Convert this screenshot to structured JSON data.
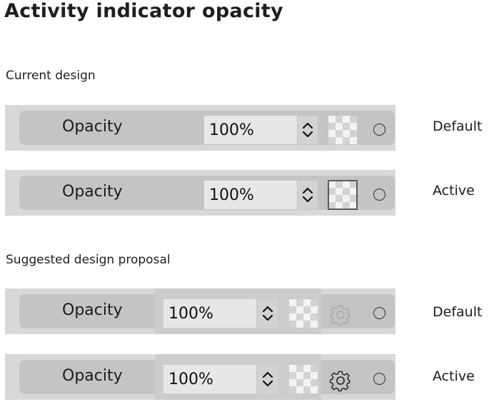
{
  "title": "Activity indicator opacity",
  "sections": {
    "current": {
      "label": "Current design"
    },
    "suggested": {
      "label": "Suggested design proposal"
    }
  },
  "rows": [
    {
      "label": "Opacity",
      "value": "100%",
      "state": "Default"
    },
    {
      "label": "Opacity",
      "value": "100%",
      "state": "Active"
    },
    {
      "label": "Opacity",
      "value": "100%",
      "state": "Default"
    },
    {
      "label": "Opacity",
      "value": "100%",
      "state": "Active"
    }
  ],
  "icons": {
    "stepper": "chevron-up-down-icon",
    "swatch": "checkerboard-transparency-icon",
    "gear": "gear-icon",
    "indicator": "circle-indicator-icon"
  },
  "colors": {
    "row_outer": "#d8d8d8",
    "row_inner": "#c4c4c4",
    "field": "#e7e7e7",
    "gear_dim": "#a8a8a8",
    "gear_active": "#222222"
  }
}
